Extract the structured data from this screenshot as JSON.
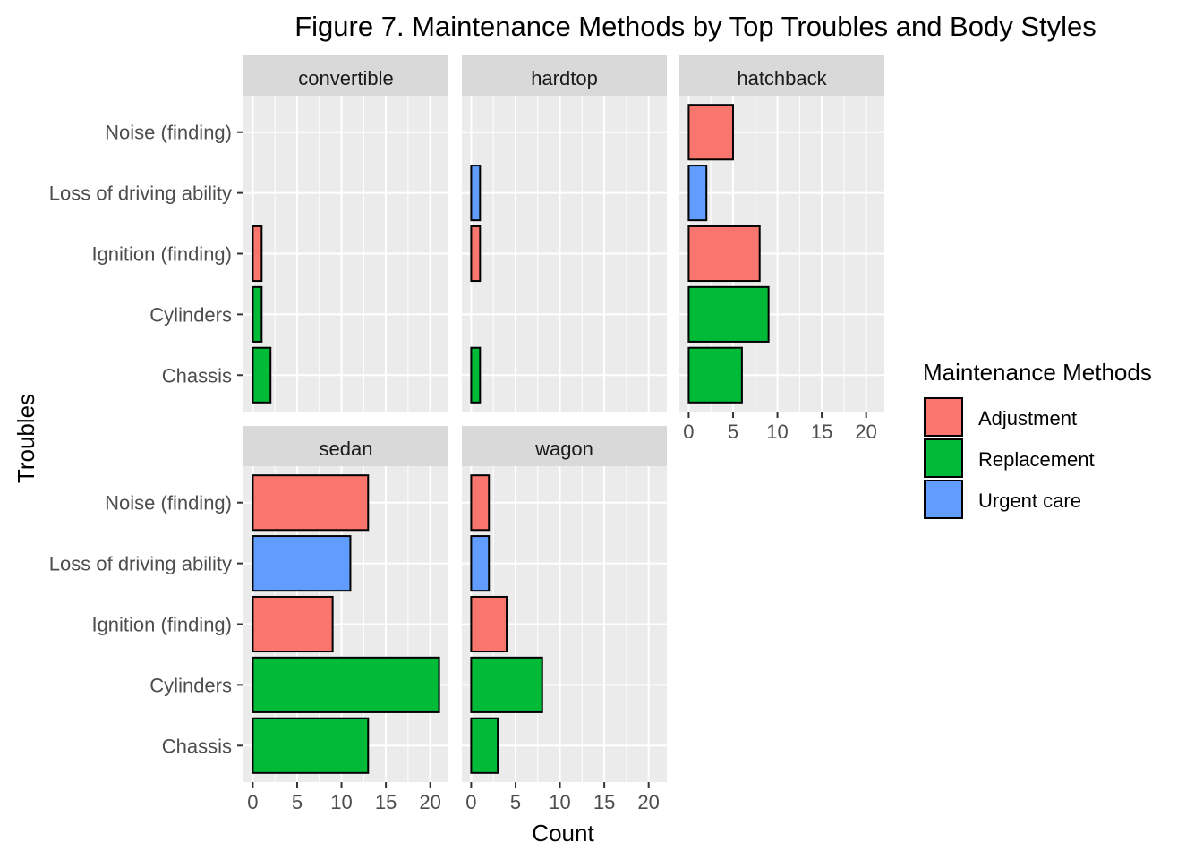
{
  "chart_data": {
    "type": "bar",
    "orientation": "horizontal",
    "title": "Figure 7. Maintenance Methods by Top Troubles and Body Styles",
    "xlabel": "Count",
    "ylabel": "Troubles",
    "xlim": [
      0,
      20
    ],
    "x_ticks": [
      "0",
      "5",
      "10",
      "15",
      "20"
    ],
    "grid": true,
    "legend_position": "right",
    "categories": [
      "Noise (finding)",
      "Loss of driving ability",
      "Ignition (finding)",
      "Cylinders",
      "Chassis"
    ],
    "legend": {
      "title": "Maintenance Methods",
      "items": [
        {
          "name": "Adjustment",
          "color": "#F8766D"
        },
        {
          "name": "Replacement",
          "color": "#00BA38"
        },
        {
          "name": "Urgent care",
          "color": "#619CFF"
        }
      ]
    },
    "facets": [
      {
        "name": "convertible",
        "bars": [
          {
            "category": "Ignition (finding)",
            "method": "Adjustment",
            "value": 1
          },
          {
            "category": "Cylinders",
            "method": "Replacement",
            "value": 1
          },
          {
            "category": "Chassis",
            "method": "Replacement",
            "value": 2
          }
        ]
      },
      {
        "name": "hardtop",
        "bars": [
          {
            "category": "Loss of driving ability",
            "method": "Urgent care",
            "value": 1
          },
          {
            "category": "Ignition (finding)",
            "method": "Adjustment",
            "value": 1
          },
          {
            "category": "Chassis",
            "method": "Replacement",
            "value": 1
          }
        ]
      },
      {
        "name": "hatchback",
        "bars": [
          {
            "category": "Noise (finding)",
            "method": "Adjustment",
            "value": 5
          },
          {
            "category": "Loss of driving ability",
            "method": "Urgent care",
            "value": 2
          },
          {
            "category": "Ignition (finding)",
            "method": "Adjustment",
            "value": 8
          },
          {
            "category": "Cylinders",
            "method": "Replacement",
            "value": 9
          },
          {
            "category": "Chassis",
            "method": "Replacement",
            "value": 6
          }
        ]
      },
      {
        "name": "sedan",
        "bars": [
          {
            "category": "Noise (finding)",
            "method": "Adjustment",
            "value": 13
          },
          {
            "category": "Loss of driving ability",
            "method": "Urgent care",
            "value": 11
          },
          {
            "category": "Ignition (finding)",
            "method": "Adjustment",
            "value": 9
          },
          {
            "category": "Cylinders",
            "method": "Replacement",
            "value": 21
          },
          {
            "category": "Chassis",
            "method": "Replacement",
            "value": 13
          }
        ]
      },
      {
        "name": "wagon",
        "bars": [
          {
            "category": "Noise (finding)",
            "method": "Adjustment",
            "value": 2
          },
          {
            "category": "Loss of driving ability",
            "method": "Urgent care",
            "value": 2
          },
          {
            "category": "Ignition (finding)",
            "method": "Adjustment",
            "value": 4
          },
          {
            "category": "Cylinders",
            "method": "Replacement",
            "value": 8
          },
          {
            "category": "Chassis",
            "method": "Replacement",
            "value": 3
          }
        ]
      }
    ]
  }
}
